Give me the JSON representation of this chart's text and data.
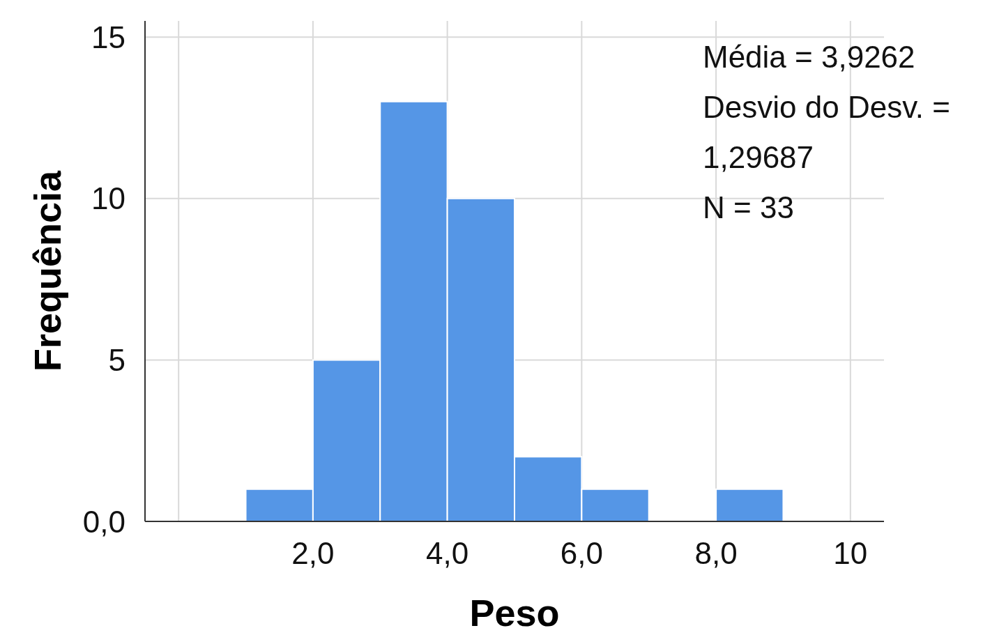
{
  "chart_data": {
    "type": "histogram",
    "xlabel": "Peso",
    "ylabel": "Frequência",
    "bins": [
      1,
      2,
      3,
      4,
      5,
      6,
      7,
      8,
      9
    ],
    "values": [
      1,
      5,
      13,
      10,
      2,
      1,
      0,
      1
    ],
    "color": "#5596e6",
    "xlim": [
      -0.5,
      10.5
    ],
    "xticks": [
      {
        "value": 0,
        "label": null
      },
      {
        "value": 2,
        "label": "2,0"
      },
      {
        "value": 4,
        "label": "4,0"
      },
      {
        "value": 6,
        "label": "6,0"
      },
      {
        "value": 8,
        "label": "8,0"
      },
      10
    ],
    "ylim": [
      0,
      15.5
    ],
    "yticks": [
      {
        "value": 0,
        "label": "0,0"
      },
      5,
      10,
      15
    ],
    "grid": true,
    "annotations": [
      "Média = 3,9262",
      "Desvio do Desv. = 1,29687",
      "N = 33"
    ]
  }
}
